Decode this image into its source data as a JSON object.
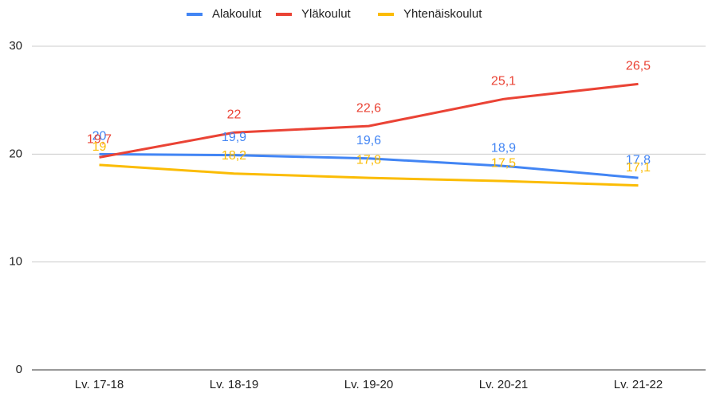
{
  "chart_data": {
    "type": "line",
    "categories": [
      "Lv. 17-18",
      "Lv. 18-19",
      "Lv. 19-20",
      "Lv. 20-21",
      "Lv. 21-22"
    ],
    "series": [
      {
        "name": "Alakoulut",
        "color": "#4285f4",
        "values": [
          20,
          19.9,
          19.6,
          18.9,
          17.8
        ],
        "value_labels": [
          "20",
          "19,9",
          "19,6",
          "18,9",
          "17,8"
        ]
      },
      {
        "name": "Yläkoulut",
        "color": "#ea4335",
        "values": [
          19.7,
          22,
          22.6,
          25.1,
          26.5
        ],
        "value_labels": [
          "19,7",
          "22",
          "22,6",
          "25,1",
          "26,5"
        ]
      },
      {
        "name": "Yhtenäiskoulut",
        "color": "#fbbc04",
        "values": [
          19,
          18.2,
          17.8,
          17.5,
          17.1
        ],
        "value_labels": [
          "19",
          "18,2",
          "17,8",
          "17,5",
          "17,1"
        ]
      }
    ],
    "ylim": [
      0,
      30
    ],
    "yticks": [
      0,
      10,
      20,
      30
    ],
    "grid": true,
    "legend": "top"
  }
}
